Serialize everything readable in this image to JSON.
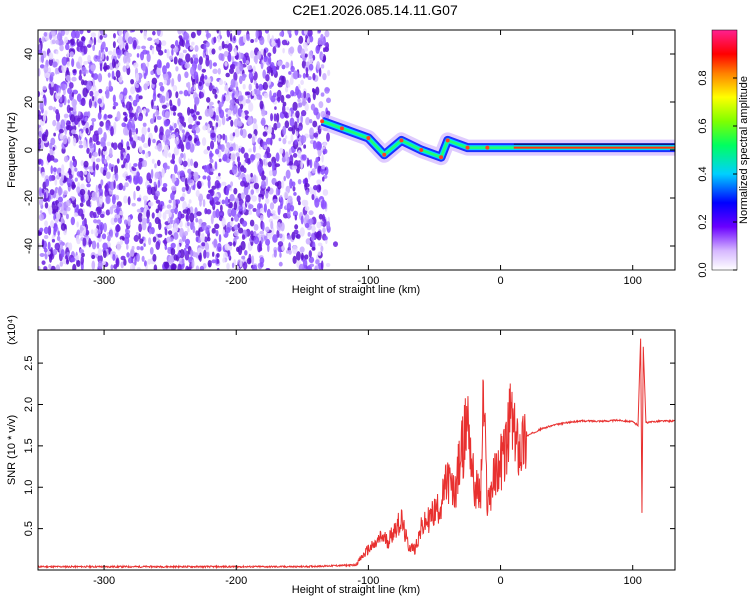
{
  "title": "C2E1.2026.085.14.11.G07",
  "colors": {
    "snr_line": "#e8302f",
    "noise_scatter": "#6a1fe0",
    "background": "#ffffff",
    "axis": "#000000"
  },
  "chart_data": [
    {
      "type": "heatmap",
      "xlabel": "Height of straight line (km)",
      "ylabel": "Frequency (Hz)",
      "xlim": [
        -350,
        132
      ],
      "ylim": [
        -50,
        50
      ],
      "xticks": [
        "-300",
        "-200",
        "-100",
        "0",
        "100"
      ],
      "xtick_values": [
        -300,
        -200,
        -100,
        0,
        100
      ],
      "yticks": [
        "-40",
        "-20",
        "0",
        "20",
        "40"
      ],
      "ytick_values": [
        -40,
        -20,
        0,
        20,
        40
      ],
      "grid": false,
      "noise_region_x": [
        -350,
        -130
      ],
      "signal_trace": [
        {
          "x": -135,
          "y": 12
        },
        {
          "x": -120,
          "y": 9
        },
        {
          "x": -100,
          "y": 5
        },
        {
          "x": -88,
          "y": -2
        },
        {
          "x": -75,
          "y": 4
        },
        {
          "x": -60,
          "y": 0
        },
        {
          "x": -45,
          "y": -3
        },
        {
          "x": -40,
          "y": 4
        },
        {
          "x": -25,
          "y": 1
        },
        {
          "x": -10,
          "y": 1
        },
        {
          "x": 10,
          "y": 1
        },
        {
          "x": 40,
          "y": 1
        },
        {
          "x": 80,
          "y": 1
        },
        {
          "x": 100,
          "y": 1
        },
        {
          "x": 132,
          "y": 1
        }
      ],
      "colorbar": {
        "label": "Normalized spectral amplitude",
        "range": [
          0,
          1
        ],
        "ticks": [
          "0.0",
          "0.2",
          "0.4",
          "0.6",
          "0.8"
        ],
        "tick_values": [
          0.0,
          0.2,
          0.4,
          0.6,
          0.8
        ]
      }
    },
    {
      "type": "line",
      "xlabel": "Height of straight line (km)",
      "ylabel": "SNR (10 * v/v)",
      "y_multiplier": "(x10⁴)",
      "xlim": [
        -350,
        132
      ],
      "ylim": [
        0,
        2.9
      ],
      "xticks": [
        "-300",
        "-200",
        "-100",
        "0",
        "100"
      ],
      "xtick_values": [
        -300,
        -200,
        -100,
        0,
        100
      ],
      "yticks": [
        "0.5",
        "1.0",
        "1.5",
        "2.0",
        "2.5"
      ],
      "ytick_values": [
        0.5,
        1.0,
        1.5,
        2.0,
        2.5
      ],
      "grid": false,
      "series": [
        {
          "x": [
            -350,
            -300,
            -250,
            -200,
            -150,
            -110,
            -100,
            -95,
            -90,
            -85,
            -80,
            -75,
            -70,
            -65,
            -60,
            -55,
            -50,
            -45,
            -40,
            -35,
            -30,
            -27,
            -25,
            -20,
            -15,
            -13,
            -10,
            -5,
            0,
            5,
            8,
            10,
            15,
            20,
            30,
            40,
            50,
            60,
            70,
            80,
            90,
            100,
            104,
            106,
            107,
            108,
            110,
            120,
            132
          ],
          "values": [
            0.04,
            0.04,
            0.04,
            0.04,
            0.04,
            0.06,
            0.25,
            0.3,
            0.4,
            0.35,
            0.5,
            0.6,
            0.3,
            0.25,
            0.5,
            0.6,
            0.7,
            0.8,
            1.1,
            0.9,
            1.4,
            1.6,
            1.9,
            1.0,
            0.9,
            2.1,
            0.8,
            1.1,
            1.3,
            1.5,
            1.95,
            1.6,
            1.5,
            1.62,
            1.7,
            1.75,
            1.78,
            1.8,
            1.8,
            1.8,
            1.81,
            1.79,
            1.75,
            2.8,
            0.7,
            2.7,
            1.78,
            1.8,
            1.8
          ]
        }
      ]
    }
  ]
}
